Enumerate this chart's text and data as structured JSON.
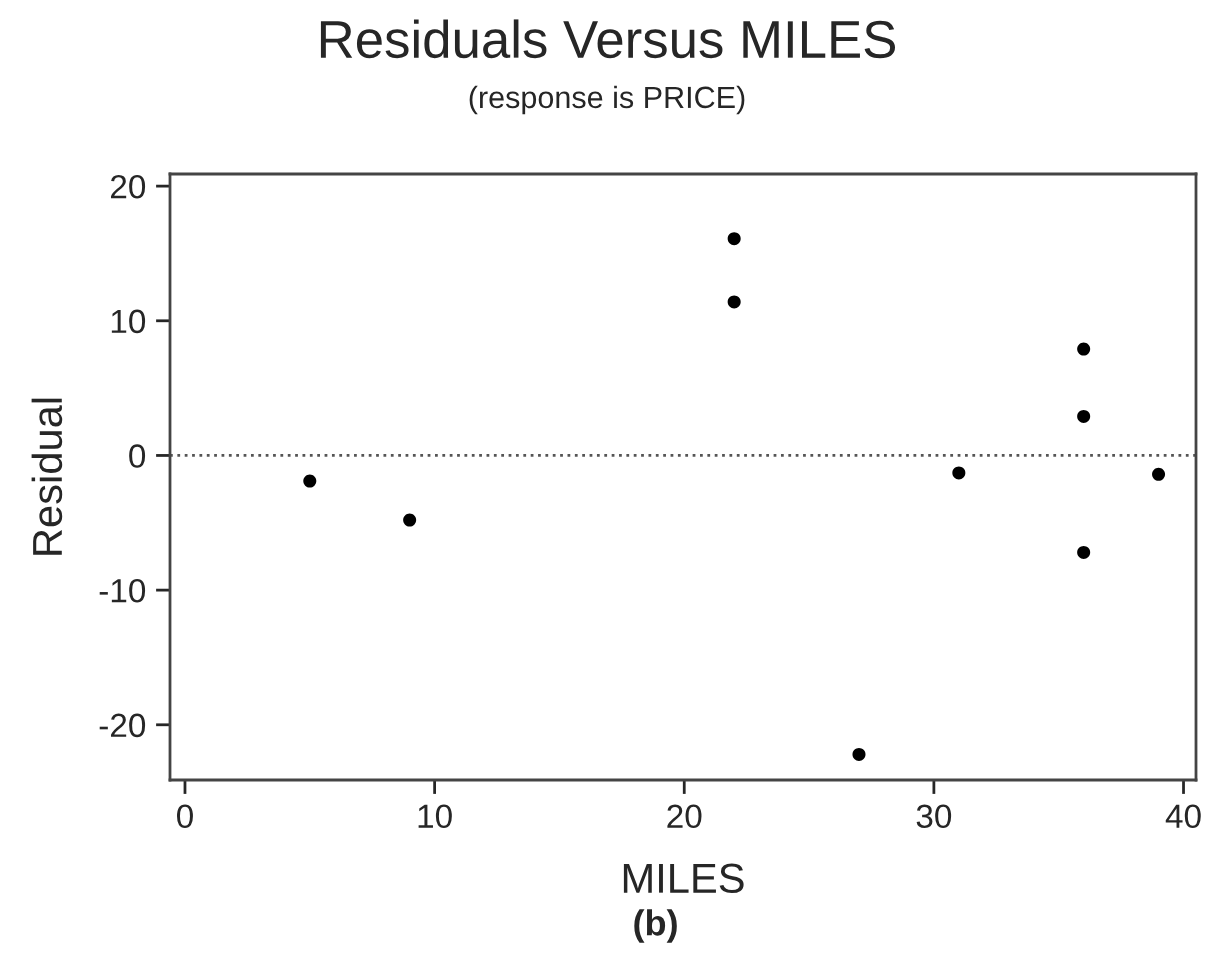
{
  "chart_data": {
    "type": "scatter",
    "title": "Residuals Versus MILES",
    "subtitle": "(response is PRICE)",
    "xlabel": "MILES",
    "ylabel": "Residual",
    "annotations": [
      "(b)"
    ],
    "x": [
      5,
      9,
      22,
      22,
      27,
      31,
      36,
      36,
      36,
      39
    ],
    "values": [
      -1.9,
      -4.8,
      16.1,
      11.4,
      -22.2,
      -1.3,
      7.9,
      2.9,
      -7.2,
      -1.4
    ],
    "color": "#000000",
    "marker": "circle",
    "xlim": [
      -0.6,
      40.5
    ],
    "xticks": [
      0,
      10,
      20,
      30,
      40
    ],
    "ylim": [
      -24.1,
      20.9
    ],
    "yticks": [
      -20,
      -10,
      0,
      10,
      20
    ],
    "ref_lines": [
      {
        "axis": "y",
        "value": 0,
        "line_style": "dotted",
        "color": "#555555"
      }
    ],
    "grid": false,
    "legend": false
  }
}
